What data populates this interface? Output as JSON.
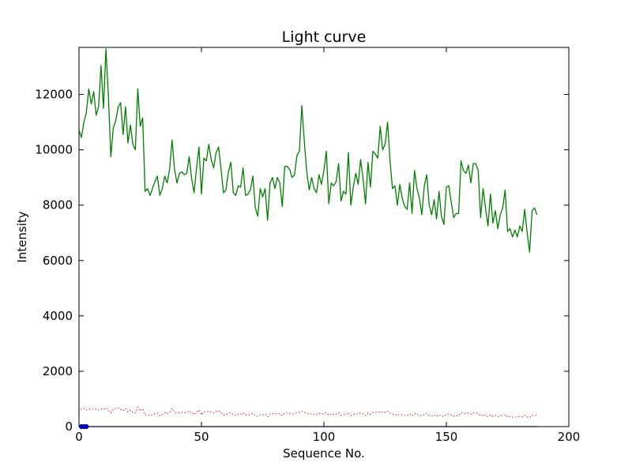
{
  "chart_data": {
    "type": "line",
    "title": "Light curve",
    "xlabel": "Sequence No.",
    "ylabel": "Intensity",
    "xlim": [
      0,
      200
    ],
    "ylim": [
      0,
      13700
    ],
    "x_ticks": [
      0,
      50,
      100,
      150,
      200
    ],
    "y_ticks": [
      0,
      2000,
      4000,
      6000,
      8000,
      10000,
      12000
    ],
    "grid": false,
    "legend": "none",
    "series": [
      {
        "style": "solid",
        "color": "#008000",
        "x_start": 0,
        "x_step": 1,
        "values": [
          10700,
          10450,
          11000,
          11350,
          12200,
          11650,
          12100,
          11250,
          11550,
          13050,
          11500,
          13650,
          11950,
          9750,
          10800,
          11050,
          11550,
          11700,
          10550,
          11550,
          10250,
          10900,
          10200,
          10000,
          12200,
          10850,
          11150,
          8500,
          8600,
          8350,
          8600,
          8850,
          9050,
          8350,
          8600,
          9050,
          8800,
          9300,
          10350,
          9300,
          8800,
          9150,
          9200,
          9100,
          9150,
          9750,
          8950,
          8450,
          9350,
          10100,
          8400,
          9700,
          9600,
          10200,
          9650,
          9350,
          9900,
          10100,
          9300,
          8450,
          8550,
          9200,
          9550,
          8450,
          8350,
          8700,
          8650,
          9350,
          8350,
          8400,
          8550,
          9050,
          7900,
          7600,
          8600,
          8300,
          8600,
          7450,
          8800,
          9000,
          8600,
          9000,
          8800,
          7950,
          9400,
          9400,
          9300,
          9000,
          9100,
          9800,
          9950,
          11600,
          10300,
          9200,
          8550,
          9000,
          8600,
          8450,
          9100,
          8750,
          9250,
          9950,
          8050,
          8800,
          8700,
          8850,
          9500,
          8150,
          8500,
          8400,
          9900,
          8000,
          8650,
          9150,
          8750,
          9650,
          8950,
          8050,
          9550,
          8650,
          9950,
          9850,
          9700,
          10850,
          10000,
          10200,
          11000,
          9600,
          8600,
          8700,
          8000,
          8750,
          8250,
          7950,
          7850,
          8800,
          7700,
          9250,
          8600,
          8250,
          7650,
          8700,
          9100,
          8000,
          7650,
          8200,
          7500,
          8500,
          7600,
          7300,
          8650,
          8700,
          8100,
          7550,
          7700,
          7700,
          9600,
          9250,
          9150,
          9450,
          8800,
          9500,
          9500,
          9250,
          7550,
          8600,
          7900,
          7250,
          8400,
          7350,
          7800,
          7150,
          7650,
          7900,
          8550,
          7050,
          7150,
          6850,
          7100,
          6850,
          7250,
          7050,
          7850,
          7000,
          6300,
          7800,
          7900,
          7650
        ]
      },
      {
        "style": "dotted",
        "color": "#ff0000",
        "x_start": 0,
        "x_step": 1,
        "values": [
          520,
          640,
          660,
          600,
          640,
          630,
          620,
          650,
          600,
          640,
          610,
          680,
          600,
          500,
          640,
          660,
          680,
          620,
          570,
          650,
          520,
          600,
          510,
          500,
          700,
          560,
          650,
          420,
          430,
          380,
          440,
          470,
          490,
          380,
          440,
          500,
          470,
          520,
          650,
          520,
          480,
          500,
          520,
          500,
          510,
          580,
          490,
          430,
          520,
          600,
          420,
          540,
          540,
          560,
          530,
          490,
          540,
          580,
          500,
          420,
          430,
          480,
          510,
          420,
          410,
          450,
          440,
          500,
          420,
          420,
          430,
          480,
          390,
          370,
          440,
          420,
          450,
          360,
          460,
          480,
          450,
          480,
          460,
          400,
          490,
          490,
          480,
          460,
          470,
          510,
          520,
          560,
          520,
          480,
          440,
          470,
          440,
          430,
          480,
          450,
          490,
          510,
          400,
          460,
          440,
          450,
          500,
          410,
          440,
          430,
          510,
          400,
          440,
          470,
          450,
          500,
          460,
          400,
          490,
          440,
          510,
          510,
          500,
          550,
          510,
          520,
          560,
          490,
          440,
          450,
          400,
          450,
          420,
          400,
          390,
          460,
          390,
          480,
          440,
          420,
          380,
          450,
          470,
          400,
          380,
          420,
          370,
          440,
          380,
          360,
          450,
          450,
          410,
          380,
          390,
          390,
          500,
          480,
          470,
          490,
          450,
          500,
          500,
          480,
          380,
          440,
          400,
          360,
          430,
          370,
          400,
          360,
          390,
          400,
          440,
          350,
          360,
          340,
          350,
          340,
          370,
          350,
          400,
          350,
          320,
          400,
          410,
          400
        ]
      },
      {
        "style": "solid",
        "color": "#0000ff",
        "x_start": 0,
        "x_step": 1,
        "values": [
          0,
          0,
          0,
          0,
          0,
          0,
          0,
          0,
          0,
          0,
          0,
          0,
          0,
          0,
          0,
          0,
          0,
          0,
          0,
          0,
          0,
          0,
          0,
          0,
          0,
          0,
          0,
          0,
          0,
          0,
          0,
          0,
          0,
          0,
          0,
          0,
          0,
          0,
          0,
          0,
          0,
          0,
          0,
          0,
          0,
          0,
          0,
          0,
          0,
          0,
          0,
          0,
          0,
          0,
          0,
          0,
          0,
          0,
          0,
          0,
          0,
          0,
          0,
          0,
          0,
          0,
          0,
          0,
          0,
          0,
          0,
          0,
          0,
          0,
          0,
          0,
          0,
          0,
          0,
          0,
          0,
          0,
          0,
          0,
          0,
          0,
          0,
          0,
          0,
          0,
          0,
          0,
          0,
          0,
          0,
          0,
          0,
          0,
          0,
          0,
          0,
          0,
          0,
          0,
          0,
          0,
          0,
          0,
          0,
          0,
          0,
          0,
          0,
          0,
          0,
          0,
          0,
          0,
          0,
          0,
          0,
          0,
          0,
          0,
          0,
          0,
          0,
          0,
          0,
          0,
          0,
          0,
          0,
          0,
          0,
          0,
          0,
          0,
          0,
          0,
          0,
          0,
          0,
          0,
          0,
          0,
          0,
          0,
          0,
          0,
          0,
          0,
          0,
          0,
          0,
          0,
          0,
          0,
          0,
          0,
          0,
          0,
          0,
          0,
          0,
          0,
          0,
          0,
          0,
          0,
          0,
          0,
          0,
          0,
          0,
          0,
          0,
          0,
          0,
          0,
          0,
          0,
          0,
          0,
          0,
          0,
          0,
          0
        ]
      }
    ],
    "markers": [
      {
        "color": "#0000ff",
        "x": [
          1,
          2,
          3
        ],
        "y": [
          0,
          0,
          0
        ]
      }
    ]
  }
}
